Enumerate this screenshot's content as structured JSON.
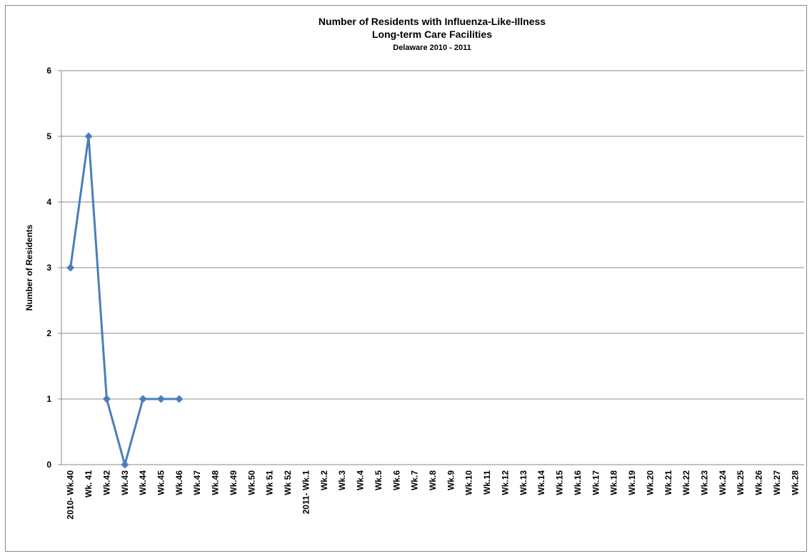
{
  "chart_data": {
    "type": "line",
    "title": [
      "Number of Residents with Influenza-Like-Illness",
      "Long-term Care Facilities"
    ],
    "subtitle": "Delaware 2010 - 2011",
    "y_label": "Number of Residents",
    "categories": [
      "2010- Wk.40",
      "Wk. 41",
      "Wk.42",
      "Wk.43",
      "Wk.44",
      "Wk.45",
      "Wk.46",
      "Wk.47",
      "Wk.48",
      "Wk.49",
      "Wk.50",
      "Wk 51",
      "Wk 52",
      "2011- Wk.1",
      "Wk.2",
      "Wk.3",
      "Wk.4",
      "Wk.5",
      "Wk.6",
      "Wk.7",
      "Wk.8",
      "Wk.9",
      "Wk.10",
      "Wk.11",
      "Wk.12",
      "Wk.13",
      "Wk.14",
      "Wk.15",
      "Wk.16",
      "Wk.17",
      "Wk.18",
      "Wk.19",
      "Wk.20",
      "Wk.21",
      "Wk.22",
      "Wk.23",
      "Wk.24",
      "Wk.25",
      "Wk.26",
      "Wk.27",
      "Wk.28"
    ],
    "values": [
      3,
      5,
      1,
      0,
      1,
      1,
      1,
      null,
      null,
      null,
      null,
      null,
      null,
      null,
      null,
      null,
      null,
      null,
      null,
      null,
      null,
      null,
      null,
      null,
      null,
      null,
      null,
      null,
      null,
      null,
      null,
      null,
      null,
      null,
      null,
      null,
      null,
      null,
      null,
      null,
      null
    ],
    "color": "#4a7ebb",
    "ylim": [
      0,
      6
    ],
    "yticks": [
      0,
      1,
      2,
      3,
      4,
      5,
      6
    ],
    "grid": true
  }
}
